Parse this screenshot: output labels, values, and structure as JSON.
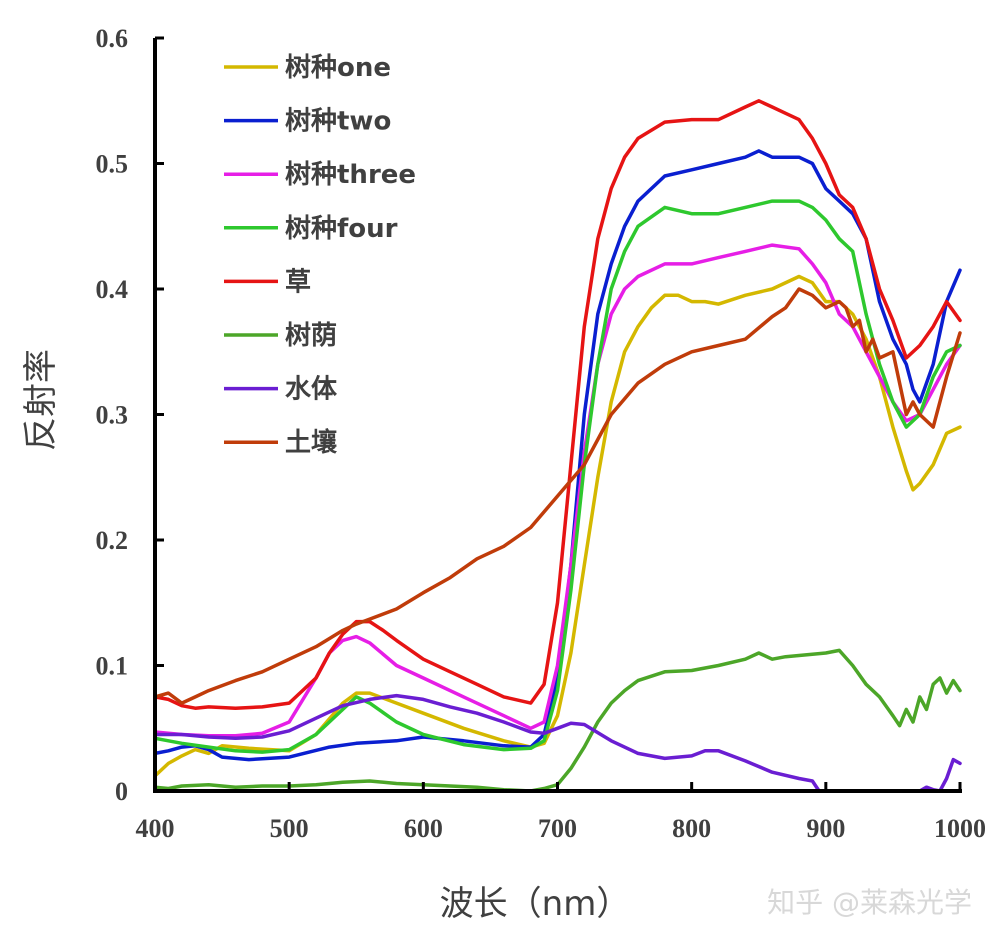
{
  "chart_data": {
    "type": "line",
    "title": "",
    "xlabel": "波长（nm）",
    "ylabel": "反射率",
    "xlim": [
      400,
      1000
    ],
    "ylim": [
      0,
      0.6
    ],
    "grid": false,
    "legend_position": "upper-left",
    "xticks": [
      "400",
      "500",
      "600",
      "700",
      "800",
      "900",
      "1000"
    ],
    "yticks": [
      "0",
      "0.1",
      "0.2",
      "0.3",
      "0.4",
      "0.5",
      "0.6"
    ],
    "watermark": "知乎 @莱森光学",
    "series": [
      {
        "name": "树种one",
        "color": "#d4b800",
        "x": [
          400,
          410,
          420,
          430,
          440,
          450,
          470,
          500,
          520,
          540,
          550,
          560,
          580,
          600,
          630,
          660,
          680,
          690,
          700,
          710,
          720,
          730,
          740,
          750,
          760,
          770,
          780,
          790,
          800,
          810,
          820,
          840,
          860,
          880,
          890,
          900,
          910,
          920,
          930,
          940,
          950,
          960,
          965,
          970,
          980,
          990,
          1000
        ],
        "y": [
          0.012,
          0.022,
          0.028,
          0.033,
          0.03,
          0.036,
          0.034,
          0.032,
          0.045,
          0.07,
          0.078,
          0.078,
          0.07,
          0.062,
          0.05,
          0.04,
          0.035,
          0.038,
          0.06,
          0.11,
          0.18,
          0.25,
          0.31,
          0.35,
          0.37,
          0.385,
          0.395,
          0.395,
          0.39,
          0.39,
          0.388,
          0.395,
          0.4,
          0.41,
          0.405,
          0.39,
          0.39,
          0.38,
          0.36,
          0.33,
          0.29,
          0.255,
          0.24,
          0.245,
          0.26,
          0.285,
          0.29
        ]
      },
      {
        "name": "树种two",
        "color": "#0a1fd0",
        "x": [
          400,
          410,
          420,
          430,
          440,
          450,
          470,
          500,
          530,
          550,
          580,
          600,
          630,
          660,
          680,
          690,
          700,
          710,
          720,
          730,
          740,
          750,
          760,
          780,
          800,
          820,
          840,
          850,
          860,
          880,
          890,
          900,
          910,
          920,
          930,
          940,
          950,
          960,
          965,
          970,
          980,
          990,
          1000
        ],
        "y": [
          0.03,
          0.032,
          0.035,
          0.036,
          0.033,
          0.027,
          0.025,
          0.027,
          0.035,
          0.038,
          0.04,
          0.043,
          0.04,
          0.036,
          0.035,
          0.045,
          0.09,
          0.18,
          0.3,
          0.38,
          0.42,
          0.45,
          0.47,
          0.49,
          0.495,
          0.5,
          0.505,
          0.51,
          0.505,
          0.505,
          0.5,
          0.48,
          0.47,
          0.46,
          0.44,
          0.39,
          0.36,
          0.34,
          0.32,
          0.31,
          0.34,
          0.39,
          0.415
        ]
      },
      {
        "name": "树种three",
        "color": "#e61ee6",
        "x": [
          400,
          420,
          440,
          460,
          480,
          500,
          520,
          530,
          540,
          550,
          560,
          580,
          600,
          630,
          660,
          680,
          690,
          700,
          710,
          720,
          730,
          740,
          750,
          760,
          780,
          800,
          820,
          840,
          860,
          880,
          890,
          900,
          910,
          920,
          930,
          940,
          950,
          960,
          970,
          980,
          990,
          1000
        ],
        "y": [
          0.047,
          0.045,
          0.044,
          0.044,
          0.046,
          0.055,
          0.09,
          0.11,
          0.12,
          0.123,
          0.118,
          0.1,
          0.09,
          0.075,
          0.06,
          0.05,
          0.055,
          0.1,
          0.18,
          0.27,
          0.34,
          0.38,
          0.4,
          0.41,
          0.42,
          0.42,
          0.425,
          0.43,
          0.435,
          0.432,
          0.42,
          0.405,
          0.38,
          0.37,
          0.35,
          0.33,
          0.31,
          0.295,
          0.3,
          0.32,
          0.34,
          0.355
        ]
      },
      {
        "name": "树种four",
        "color": "#2ec82e",
        "x": [
          400,
          410,
          420,
          440,
          460,
          480,
          500,
          520,
          540,
          550,
          560,
          580,
          600,
          630,
          660,
          680,
          690,
          700,
          710,
          720,
          730,
          740,
          750,
          760,
          780,
          800,
          820,
          840,
          860,
          880,
          890,
          900,
          910,
          920,
          930,
          940,
          950,
          960,
          970,
          980,
          990,
          1000
        ],
        "y": [
          0.042,
          0.04,
          0.038,
          0.035,
          0.032,
          0.031,
          0.033,
          0.045,
          0.065,
          0.075,
          0.07,
          0.055,
          0.045,
          0.037,
          0.033,
          0.034,
          0.04,
          0.08,
          0.16,
          0.26,
          0.34,
          0.4,
          0.43,
          0.45,
          0.465,
          0.46,
          0.46,
          0.465,
          0.47,
          0.47,
          0.465,
          0.455,
          0.44,
          0.43,
          0.38,
          0.34,
          0.31,
          0.29,
          0.3,
          0.33,
          0.35,
          0.355
        ]
      },
      {
        "name": "草",
        "color": "#e61414",
        "x": [
          400,
          410,
          420,
          430,
          440,
          460,
          480,
          500,
          520,
          530,
          540,
          550,
          560,
          570,
          580,
          600,
          620,
          640,
          660,
          680,
          690,
          700,
          710,
          720,
          730,
          740,
          750,
          760,
          780,
          800,
          820,
          840,
          850,
          860,
          870,
          880,
          890,
          900,
          910,
          920,
          930,
          940,
          950,
          960,
          970,
          980,
          990,
          1000
        ],
        "y": [
          0.075,
          0.073,
          0.068,
          0.066,
          0.067,
          0.066,
          0.067,
          0.07,
          0.09,
          0.11,
          0.125,
          0.135,
          0.135,
          0.128,
          0.12,
          0.105,
          0.095,
          0.085,
          0.075,
          0.07,
          0.085,
          0.15,
          0.26,
          0.37,
          0.44,
          0.48,
          0.505,
          0.52,
          0.533,
          0.535,
          0.535,
          0.545,
          0.55,
          0.545,
          0.54,
          0.535,
          0.52,
          0.5,
          0.475,
          0.465,
          0.44,
          0.4,
          0.375,
          0.345,
          0.355,
          0.37,
          0.39,
          0.375
        ]
      },
      {
        "name": "树荫",
        "color": "#4ca628",
        "x": [
          400,
          410,
          420,
          440,
          460,
          480,
          500,
          520,
          540,
          560,
          580,
          600,
          620,
          640,
          660,
          680,
          690,
          700,
          710,
          720,
          730,
          740,
          750,
          760,
          780,
          800,
          820,
          840,
          850,
          860,
          870,
          880,
          900,
          910,
          920,
          930,
          940,
          950,
          955,
          960,
          965,
          970,
          975,
          980,
          985,
          990,
          995,
          1000
        ],
        "y": [
          0.003,
          0.002,
          0.004,
          0.005,
          0.003,
          0.004,
          0.004,
          0.005,
          0.007,
          0.008,
          0.006,
          0.005,
          0.004,
          0.003,
          0.001,
          0.0,
          0.002,
          0.005,
          0.018,
          0.035,
          0.055,
          0.07,
          0.08,
          0.088,
          0.095,
          0.096,
          0.1,
          0.105,
          0.11,
          0.105,
          0.107,
          0.108,
          0.11,
          0.112,
          0.1,
          0.085,
          0.075,
          0.06,
          0.052,
          0.065,
          0.055,
          0.075,
          0.065,
          0.085,
          0.09,
          0.078,
          0.088,
          0.08
        ]
      },
      {
        "name": "水体",
        "color": "#6a1ed2",
        "x": [
          400,
          420,
          440,
          460,
          480,
          500,
          520,
          540,
          560,
          580,
          600,
          620,
          640,
          660,
          680,
          690,
          700,
          710,
          720,
          740,
          760,
          780,
          800,
          810,
          820,
          840,
          860,
          880,
          890,
          895,
          900,
          950,
          970,
          975,
          980,
          985,
          990,
          995,
          1000
        ],
        "y": [
          0.045,
          0.045,
          0.043,
          0.042,
          0.043,
          0.048,
          0.058,
          0.068,
          0.073,
          0.076,
          0.073,
          0.067,
          0.062,
          0.055,
          0.047,
          0.046,
          0.05,
          0.054,
          0.053,
          0.04,
          0.03,
          0.026,
          0.028,
          0.032,
          0.032,
          0.024,
          0.015,
          0.01,
          0.008,
          0.0,
          0.0,
          0.0,
          0.0,
          0.003,
          0.001,
          0.0,
          0.01,
          0.025,
          0.022
        ]
      },
      {
        "name": "土壤",
        "color": "#c03c0a",
        "x": [
          400,
          410,
          420,
          430,
          440,
          460,
          480,
          500,
          520,
          540,
          550,
          560,
          580,
          600,
          620,
          640,
          660,
          680,
          700,
          720,
          740,
          760,
          780,
          800,
          820,
          840,
          860,
          870,
          880,
          890,
          900,
          910,
          915,
          920,
          925,
          930,
          935,
          940,
          950,
          955,
          960,
          965,
          970,
          980,
          990,
          1000
        ],
        "y": [
          0.075,
          0.078,
          0.07,
          0.075,
          0.08,
          0.088,
          0.095,
          0.105,
          0.115,
          0.128,
          0.133,
          0.137,
          0.145,
          0.158,
          0.17,
          0.185,
          0.195,
          0.21,
          0.235,
          0.26,
          0.3,
          0.325,
          0.34,
          0.35,
          0.355,
          0.36,
          0.378,
          0.385,
          0.4,
          0.395,
          0.385,
          0.39,
          0.385,
          0.37,
          0.375,
          0.35,
          0.36,
          0.345,
          0.35,
          0.325,
          0.3,
          0.31,
          0.3,
          0.29,
          0.33,
          0.365
        ]
      }
    ]
  }
}
